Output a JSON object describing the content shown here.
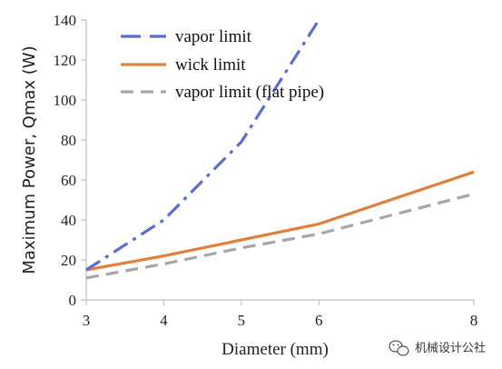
{
  "chart_data": {
    "type": "line",
    "xlabel": "Diameter (mm)",
    "ylabel": "Maximum Power, Qmax (W)",
    "xlim": [
      3,
      8
    ],
    "ylim": [
      0,
      140
    ],
    "x_ticks": [
      3,
      4,
      5,
      6,
      8
    ],
    "y_ticks": [
      0,
      20,
      40,
      60,
      80,
      100,
      120,
      140
    ],
    "grid": false,
    "legend_position": "top-left",
    "series": [
      {
        "name": "vapor limit",
        "color": "#5a6fcf",
        "style": "dashdot",
        "points": [
          [
            3,
            15
          ],
          [
            4,
            40
          ],
          [
            5,
            79
          ],
          [
            6,
            140
          ]
        ]
      },
      {
        "name": "wick limit",
        "color": "#e0803a",
        "style": "solid",
        "points": [
          [
            3,
            15
          ],
          [
            4,
            22
          ],
          [
            5,
            30
          ],
          [
            6,
            38
          ],
          [
            8,
            64
          ]
        ]
      },
      {
        "name": "vapor limit (flat pipe)",
        "color": "#a6a6a6",
        "style": "dashed",
        "points": [
          [
            3,
            11
          ],
          [
            4,
            18
          ],
          [
            5,
            26
          ],
          [
            6,
            33
          ],
          [
            8,
            53
          ]
        ]
      }
    ]
  },
  "watermark": {
    "text": "机械设计公社",
    "icon": "wechat-icon"
  }
}
